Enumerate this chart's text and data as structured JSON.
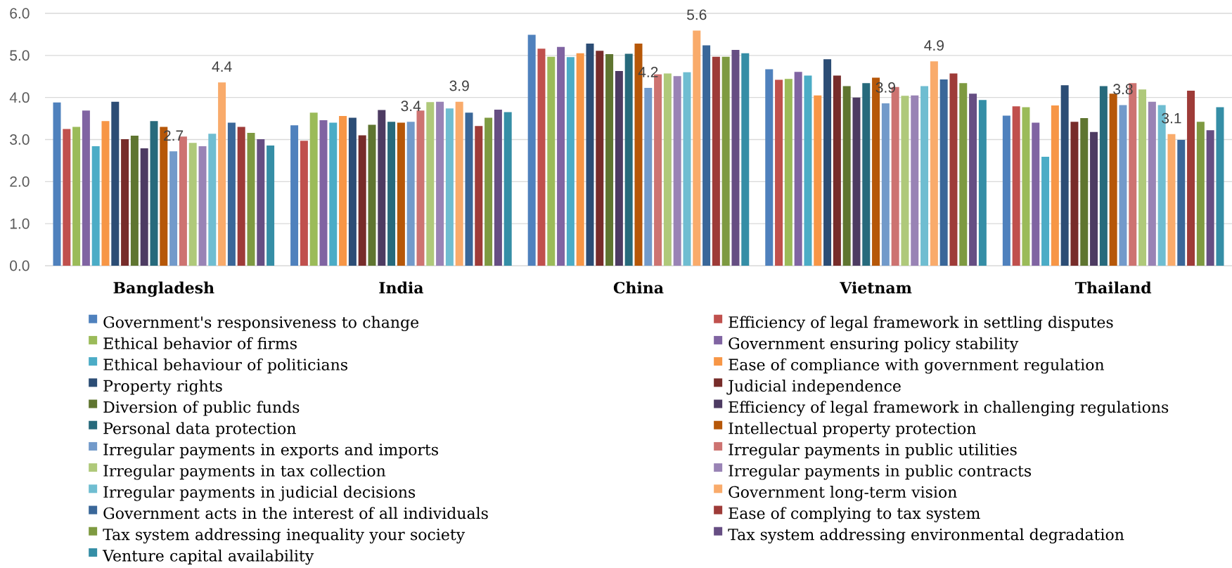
{
  "chart_data": {
    "type": "bar",
    "categories": [
      "Bangladesh",
      "India",
      "China",
      "Vietnam",
      "Thailand"
    ],
    "series": [
      {
        "name": "Government's responsiveness to change",
        "color": "#4F81BD",
        "values": [
          3.88,
          3.34,
          5.49,
          4.67,
          3.57
        ]
      },
      {
        "name": "Efficiency of legal framework in settling disputes",
        "color": "#C0504D",
        "values": [
          3.25,
          2.97,
          5.16,
          4.42,
          3.79
        ]
      },
      {
        "name": "Ethical behavior of firms",
        "color": "#9BBB59",
        "values": [
          3.3,
          3.64,
          4.97,
          4.44,
          3.77
        ]
      },
      {
        "name": "Government ensuring policy stability",
        "color": "#8064A2",
        "values": [
          3.69,
          3.46,
          5.2,
          4.61,
          3.4
        ]
      },
      {
        "name": "Ethical behaviour of politicians",
        "color": "#4BACC6",
        "values": [
          2.84,
          3.4,
          4.96,
          4.52,
          2.59
        ]
      },
      {
        "name": "Ease of compliance with government regulation",
        "color": "#F79646",
        "values": [
          3.44,
          3.56,
          5.05,
          4.05,
          3.81
        ]
      },
      {
        "name": "Property rights",
        "color": "#2C4D75",
        "values": [
          3.9,
          3.52,
          5.28,
          4.91,
          4.29
        ]
      },
      {
        "name": "Judicial independence",
        "color": "#772C2A",
        "values": [
          3.01,
          3.1,
          5.11,
          4.52,
          3.42
        ]
      },
      {
        "name": "Diversion of public funds",
        "color": "#5F7530",
        "values": [
          3.09,
          3.35,
          5.03,
          4.27,
          3.51
        ]
      },
      {
        "name": "Efficiency of legal framework in challenging regulations",
        "color": "#4D3B62",
        "values": [
          2.79,
          3.7,
          4.63,
          4.0,
          3.18
        ]
      },
      {
        "name": "Personal data protection",
        "color": "#276A7C",
        "values": [
          3.44,
          3.42,
          5.04,
          4.34,
          4.27
        ]
      },
      {
        "name": "Intellectual property protection",
        "color": "#B65708",
        "values": [
          3.3,
          3.4,
          5.28,
          4.47,
          4.09
        ]
      },
      {
        "name": "Irregular payments in exports and imports",
        "color": "#729ACA",
        "values": [
          2.72,
          3.42,
          4.23,
          3.86,
          3.82
        ],
        "value_labels": [
          "2.7",
          "3.4",
          "4.2",
          "3.9",
          "3.8"
        ]
      },
      {
        "name": "Irregular payments in public utilities",
        "color": "#CD7371",
        "values": [
          3.07,
          3.69,
          4.55,
          4.25,
          4.34
        ]
      },
      {
        "name": "Irregular payments in tax collection",
        "color": "#AFC97A",
        "values": [
          2.92,
          3.89,
          4.57,
          4.04,
          4.19
        ]
      },
      {
        "name": "Irregular payments in public contracts",
        "color": "#9983B5",
        "values": [
          2.84,
          3.9,
          4.51,
          4.05,
          3.9
        ]
      },
      {
        "name": "Irregular payments in judicial decisions",
        "color": "#6FBDD1",
        "values": [
          3.14,
          3.74,
          4.6,
          4.27,
          3.82
        ]
      },
      {
        "name": "Government long-term vision",
        "color": "#F9AB6B",
        "values": [
          4.36,
          3.9,
          5.59,
          4.86,
          3.13
        ],
        "value_labels": [
          "4.4",
          "3.9",
          "5.6",
          "4.9",
          "3.1"
        ]
      },
      {
        "name": "Government acts in the interest of all individuals",
        "color": "#3A6799",
        "values": [
          3.4,
          3.64,
          5.24,
          4.43,
          2.99
        ]
      },
      {
        "name": "Ease of complying to tax system",
        "color": "#9E3B38",
        "values": [
          3.3,
          3.32,
          4.97,
          4.57,
          4.16
        ]
      },
      {
        "name": "Tax system addressing inequality your society",
        "color": "#7E9A41",
        "values": [
          3.16,
          3.52,
          4.97,
          4.34,
          3.42
        ]
      },
      {
        "name": "Tax system addressing environmental degradation",
        "color": "#664E83",
        "values": [
          3.01,
          3.71,
          5.13,
          4.09,
          3.22
        ]
      },
      {
        "name": "Venture capital availability",
        "color": "#358EA6",
        "values": [
          2.86,
          3.65,
          5.05,
          3.94,
          3.77
        ]
      }
    ],
    "ylim": [
      0,
      6
    ],
    "yticks": [
      {
        "value": 0,
        "label": "0.0"
      },
      {
        "value": 1,
        "label": "1.0"
      },
      {
        "value": 2,
        "label": "2.0"
      },
      {
        "value": 3,
        "label": "3.0"
      },
      {
        "value": 4,
        "label": "4.0"
      },
      {
        "value": 5,
        "label": "5.0"
      },
      {
        "value": 6,
        "label": "6.0"
      }
    ],
    "grid": "y",
    "legend": "bottom"
  }
}
